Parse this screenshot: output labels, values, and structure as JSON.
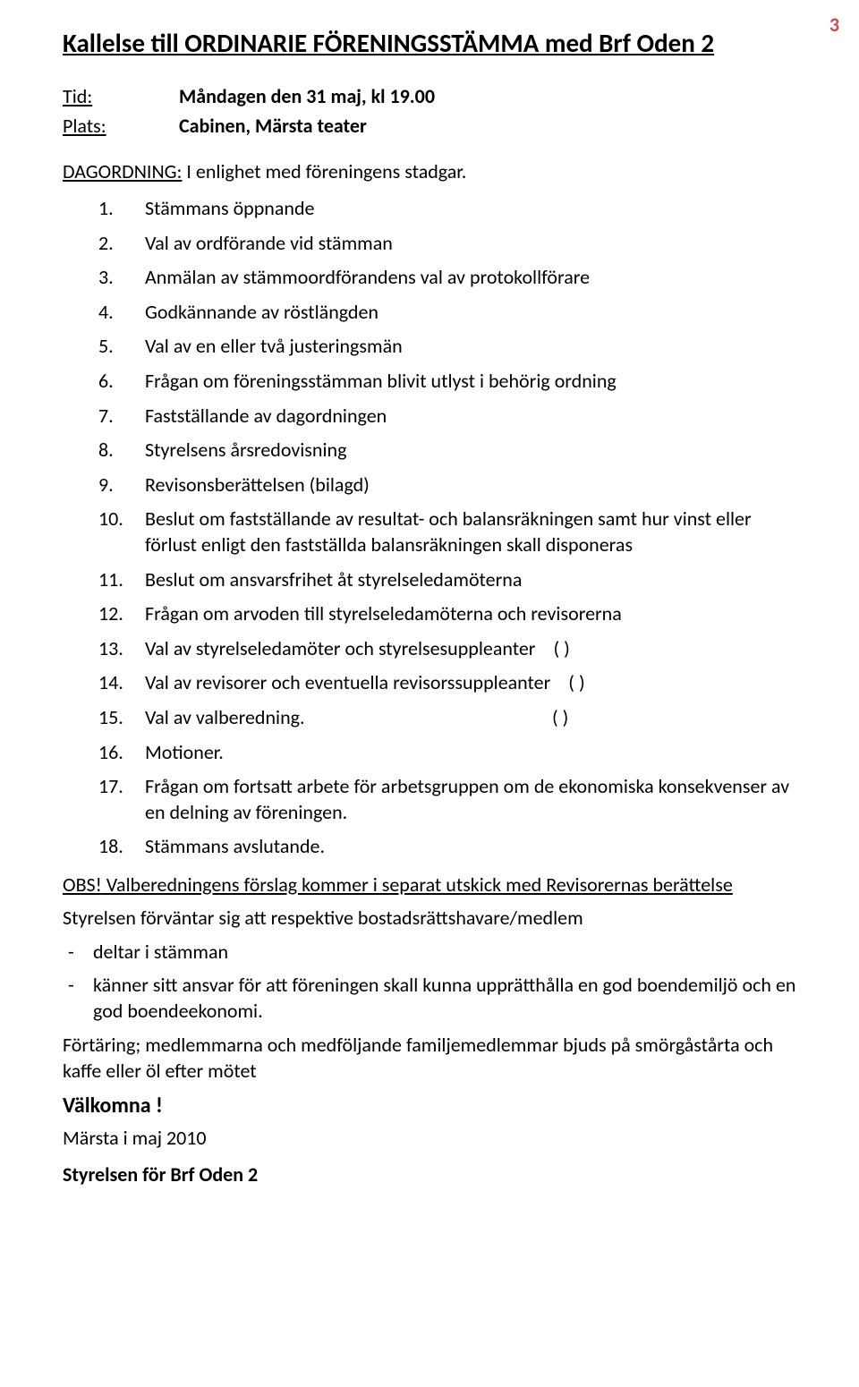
{
  "page_number": "3",
  "colors": {
    "page_number": "#c0504d",
    "text": "#000000",
    "background": "#ffffff"
  },
  "typography": {
    "body_fontsize": 22,
    "title_fontsize": 29,
    "welcome_fontsize": 24
  },
  "title": "Kallelse till ORDINARIE FÖRENINGSSTÄMMA med Brf Oden 2",
  "meta": {
    "tid_label": "Tid:",
    "tid_value": "Måndagen den 31 maj, kl 19.00",
    "plats_label": "Plats:",
    "plats_value": "Cabinen, Märsta teater"
  },
  "dagordning_label": "DAGORDNING:",
  "dagordning_text": " I enlighet med föreningens stadgar.",
  "agenda": [
    {
      "n": "1.",
      "text": "Stämmans öppnande"
    },
    {
      "n": "2.",
      "text": "Val av ordförande vid stämman"
    },
    {
      "n": "3.",
      "text": "Anmälan av stämmoordförandens val av protokollförare"
    },
    {
      "n": "4.",
      "text": "Godkännande av röstlängden"
    },
    {
      "n": "5.",
      "text": "Val av en eller två justeringsmän"
    },
    {
      "n": "6.",
      "text": "Frågan om föreningsstämman blivit utlyst i behörig ordning"
    },
    {
      "n": "7.",
      "text": "Fastställande av dagordningen"
    },
    {
      "n": "8.",
      "text": "Styrelsens årsredovisning"
    },
    {
      "n": "9.",
      "text": "Revisonsberättelsen (bilagd)"
    },
    {
      "n": "10.",
      "text": "Beslut om fastställande av resultat- och balansräkningen samt hur vinst eller förlust enligt den fastställda balansräkningen skall disponeras"
    },
    {
      "n": "11.",
      "text": "Beslut om ansvarsfrihet åt styrelseledamöterna"
    },
    {
      "n": "12.",
      "text": "Frågan om arvoden till styrelseledamöterna och revisorerna"
    },
    {
      "n": "13.",
      "text": "Val av styrelseledamöter och  styrelsesuppleanter",
      "paren": "(  )"
    },
    {
      "n": "14.",
      "text": "Val av revisorer och eventuella revisorssuppleanter",
      "paren": "(  )"
    },
    {
      "n": "15.",
      "text": "Val av valberedning.",
      "paren": "(  )",
      "wide": true
    },
    {
      "n": "16.",
      "text": "Motioner."
    },
    {
      "n": "17.",
      "text": "Frågan om fortsatt arbete för arbetsgruppen om de ekonomiska konsekvenser av en delning av föreningen."
    },
    {
      "n": "18.",
      "text": "Stämmans avslutande."
    }
  ],
  "obs_line_prefix": "OBS!",
  "obs_line_rest": " Valberedningens förslag kommer i separat utskick med Revisorernas berättelse",
  "expectation": "Styrelsen förväntar sig att respektive bostadsrättshavare/medlem",
  "dash_items": [
    "deltar i stämman",
    "känner sitt ansvar för att föreningen skall kunna upprätthålla en god boendemiljö och en god boendeekonomi."
  ],
  "catering": "Förtäring; medlemmarna och medföljande familjemedlemmar bjuds på smörgåstårta och kaffe eller öl efter mötet",
  "welcome": "Välkomna !",
  "date_place": "Märsta i maj 2010",
  "signature": "Styrelsen för Brf Oden 2"
}
